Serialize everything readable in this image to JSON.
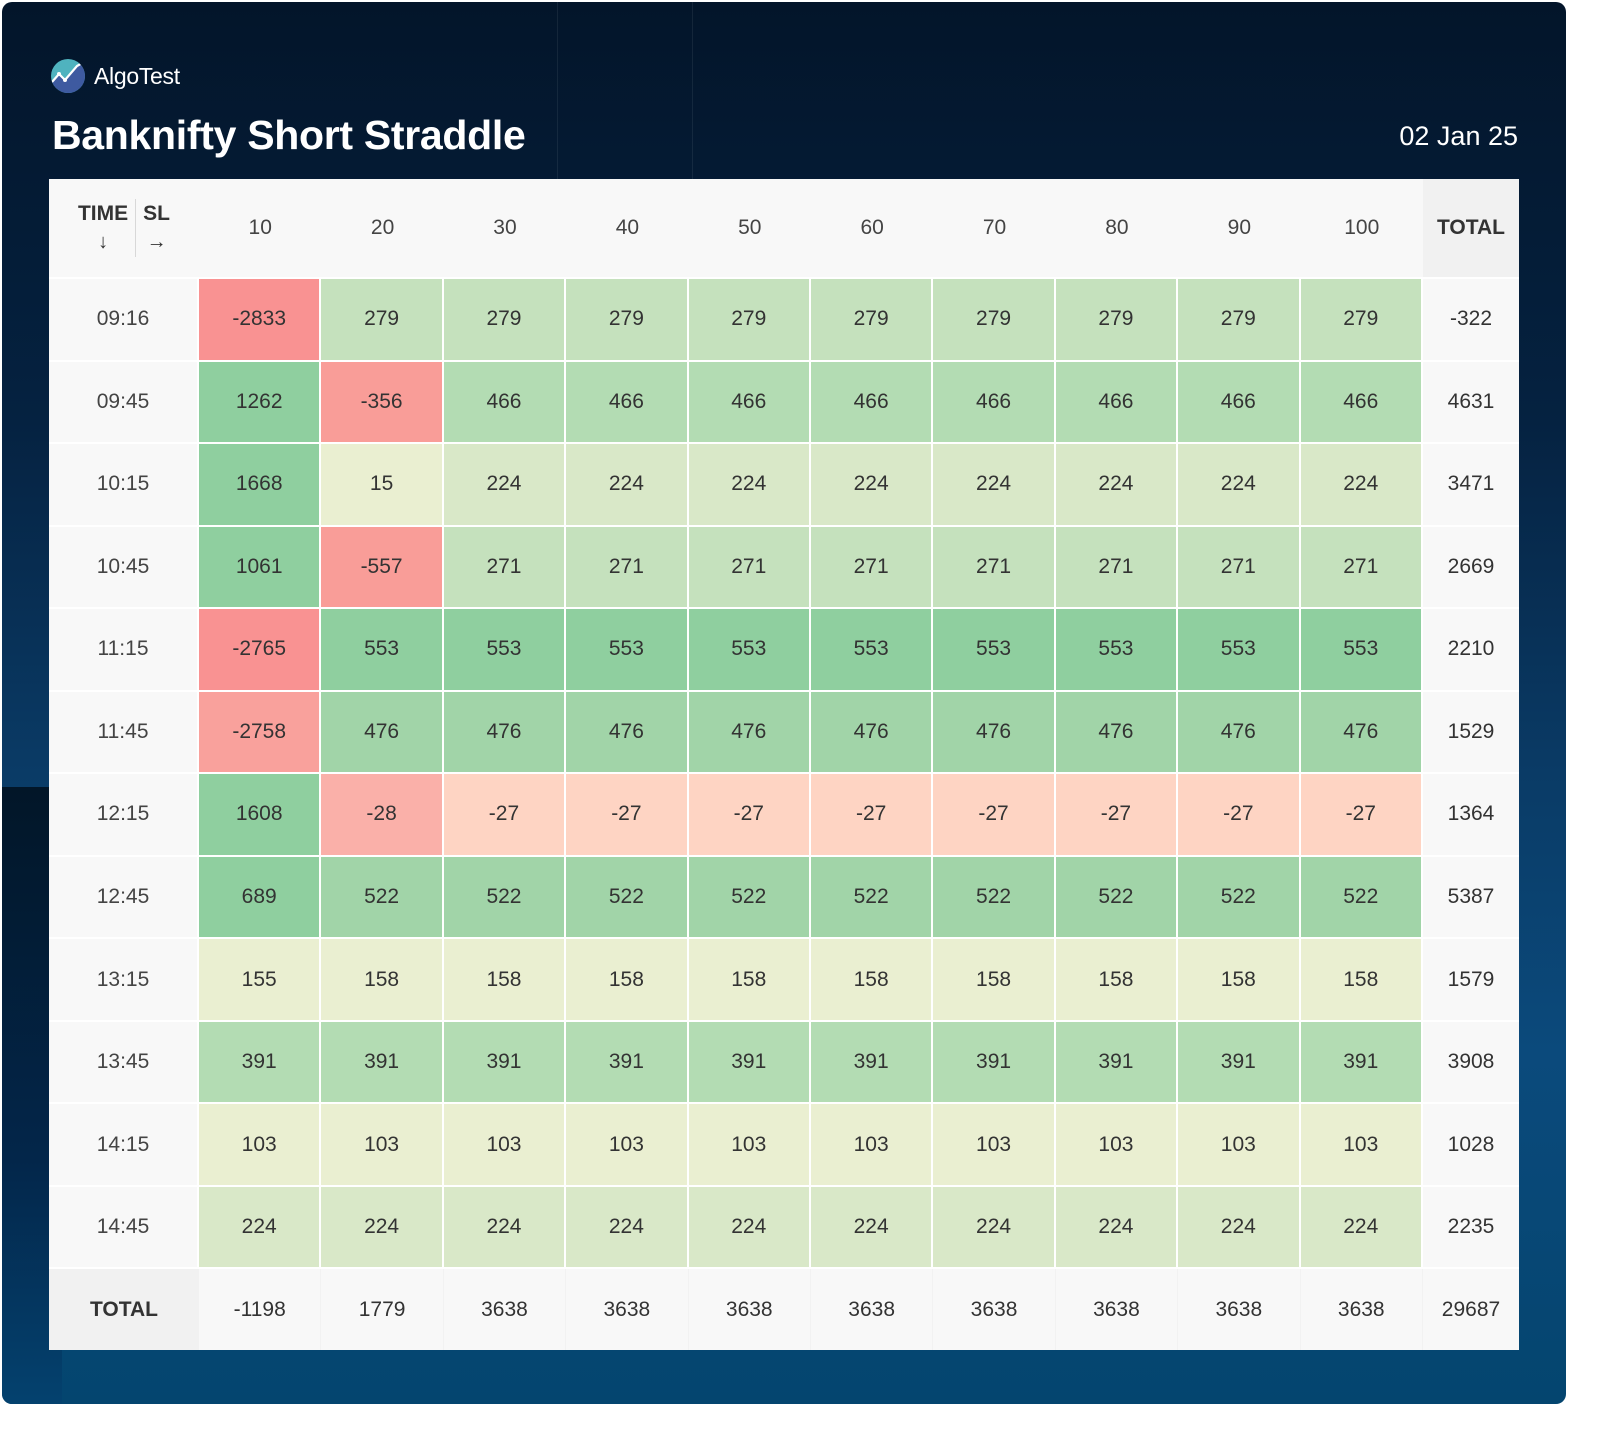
{
  "header": {
    "brand": "AlgoTest",
    "title": "Banknifty Short Straddle",
    "date": "02 Jan 25",
    "logo_icon": "algotest-chart-logo-icon"
  },
  "table": {
    "corner": {
      "row_axis_label": "TIME",
      "row_axis_arrow": "↓",
      "col_axis_label": "SL",
      "col_axis_arrow": "→"
    },
    "columns": [
      "10",
      "20",
      "30",
      "40",
      "50",
      "60",
      "70",
      "80",
      "90",
      "100"
    ],
    "total_label": "TOTAL",
    "rows": [
      {
        "time": "09:16",
        "values": [
          "-2833",
          "279",
          "279",
          "279",
          "279",
          "279",
          "279",
          "279",
          "279",
          "279"
        ],
        "total": "-322"
      },
      {
        "time": "09:45",
        "values": [
          "1262",
          "-356",
          "466",
          "466",
          "466",
          "466",
          "466",
          "466",
          "466",
          "466"
        ],
        "total": "4631"
      },
      {
        "time": "10:15",
        "values": [
          "1668",
          "15",
          "224",
          "224",
          "224",
          "224",
          "224",
          "224",
          "224",
          "224"
        ],
        "total": "3471"
      },
      {
        "time": "10:45",
        "values": [
          "1061",
          "-557",
          "271",
          "271",
          "271",
          "271",
          "271",
          "271",
          "271",
          "271"
        ],
        "total": "2669"
      },
      {
        "time": "11:15",
        "values": [
          "-2765",
          "553",
          "553",
          "553",
          "553",
          "553",
          "553",
          "553",
          "553",
          "553"
        ],
        "total": "2210"
      },
      {
        "time": "11:45",
        "values": [
          "-2758",
          "476",
          "476",
          "476",
          "476",
          "476",
          "476",
          "476",
          "476",
          "476"
        ],
        "total": "1529"
      },
      {
        "time": "12:15",
        "values": [
          "1608",
          "-28",
          "-27",
          "-27",
          "-27",
          "-27",
          "-27",
          "-27",
          "-27",
          "-27"
        ],
        "total": "1364"
      },
      {
        "time": "12:45",
        "values": [
          "689",
          "522",
          "522",
          "522",
          "522",
          "522",
          "522",
          "522",
          "522",
          "522"
        ],
        "total": "5387"
      },
      {
        "time": "13:15",
        "values": [
          "155",
          "158",
          "158",
          "158",
          "158",
          "158",
          "158",
          "158",
          "158",
          "158"
        ],
        "total": "1579"
      },
      {
        "time": "13:45",
        "values": [
          "391",
          "391",
          "391",
          "391",
          "391",
          "391",
          "391",
          "391",
          "391",
          "391"
        ],
        "total": "3908"
      },
      {
        "time": "14:15",
        "values": [
          "103",
          "103",
          "103",
          "103",
          "103",
          "103",
          "103",
          "103",
          "103",
          "103"
        ],
        "total": "1028"
      },
      {
        "time": "14:45",
        "values": [
          "224",
          "224",
          "224",
          "224",
          "224",
          "224",
          "224",
          "224",
          "224",
          "224"
        ],
        "total": "2235"
      }
    ],
    "column_totals": [
      "-1198",
      "1779",
      "3638",
      "3638",
      "3638",
      "3638",
      "3638",
      "3638",
      "3638",
      "3638"
    ],
    "grand_total": "29687",
    "cell_colors": [
      [
        "#f99292",
        "#c5e1bd",
        "#c5e1bd",
        "#c5e1bd",
        "#c5e1bd",
        "#c5e1bd",
        "#c5e1bd",
        "#c5e1bd",
        "#c5e1bd",
        "#c5e1bd"
      ],
      [
        "#8fcf9f",
        "#f99d98",
        "#b3dcb3",
        "#b3dcb3",
        "#b3dcb3",
        "#b3dcb3",
        "#b3dcb3",
        "#b3dcb3",
        "#b3dcb3",
        "#b3dcb3"
      ],
      [
        "#8fcf9f",
        "#eaefd1",
        "#d9e8c8",
        "#d9e8c8",
        "#d9e8c8",
        "#d9e8c8",
        "#d9e8c8",
        "#d9e8c8",
        "#d9e8c8",
        "#d9e8c8"
      ],
      [
        "#8fcf9f",
        "#f99d98",
        "#c5e1bd",
        "#c5e1bd",
        "#c5e1bd",
        "#c5e1bd",
        "#c5e1bd",
        "#c5e1bd",
        "#c5e1bd",
        "#c5e1bd"
      ],
      [
        "#f99292",
        "#8fcf9f",
        "#8fcf9f",
        "#8fcf9f",
        "#8fcf9f",
        "#8fcf9f",
        "#8fcf9f",
        "#8fcf9f",
        "#8fcf9f",
        "#8fcf9f"
      ],
      [
        "#f9a19c",
        "#a1d4a8",
        "#a1d4a8",
        "#a1d4a8",
        "#a1d4a8",
        "#a1d4a8",
        "#a1d4a8",
        "#a1d4a8",
        "#a1d4a8",
        "#a1d4a8"
      ],
      [
        "#8fcf9f",
        "#fab0a9",
        "#fed4c3",
        "#fed4c3",
        "#fed4c3",
        "#fed4c3",
        "#fed4c3",
        "#fed4c3",
        "#fed4c3",
        "#fed4c3"
      ],
      [
        "#8fcf9f",
        "#a1d4a8",
        "#a1d4a8",
        "#a1d4a8",
        "#a1d4a8",
        "#a1d4a8",
        "#a1d4a8",
        "#a1d4a8",
        "#a1d4a8",
        "#a1d4a8"
      ],
      [
        "#eaefd1",
        "#eaefd1",
        "#eaefd1",
        "#eaefd1",
        "#eaefd1",
        "#eaefd1",
        "#eaefd1",
        "#eaefd1",
        "#eaefd1",
        "#eaefd1"
      ],
      [
        "#b3dcb3",
        "#b3dcb3",
        "#b3dcb3",
        "#b3dcb3",
        "#b3dcb3",
        "#b3dcb3",
        "#b3dcb3",
        "#b3dcb3",
        "#b3dcb3",
        "#b3dcb3"
      ],
      [
        "#eaefd1",
        "#eaefd1",
        "#eaefd1",
        "#eaefd1",
        "#eaefd1",
        "#eaefd1",
        "#eaefd1",
        "#eaefd1",
        "#eaefd1",
        "#eaefd1"
      ],
      [
        "#d9e8c8",
        "#d9e8c8",
        "#d9e8c8",
        "#d9e8c8",
        "#d9e8c8",
        "#d9e8c8",
        "#d9e8c8",
        "#d9e8c8",
        "#d9e8c8",
        "#d9e8c8"
      ]
    ]
  }
}
